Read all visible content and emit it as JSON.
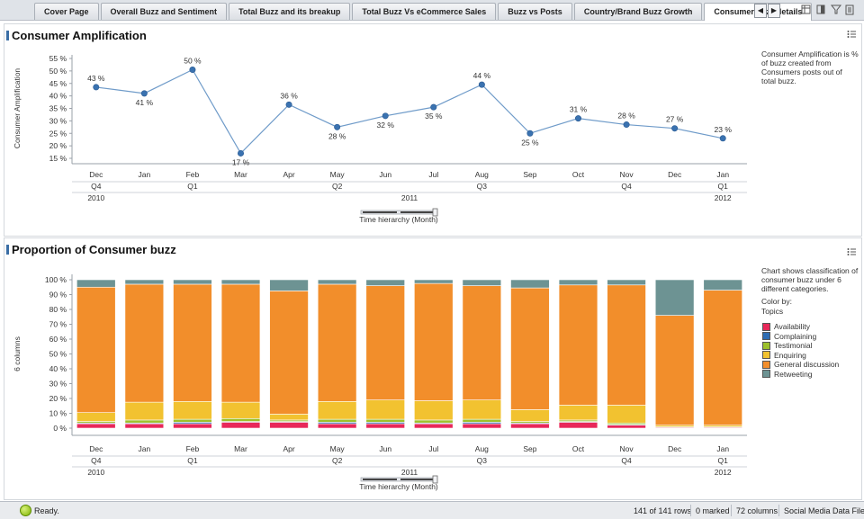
{
  "tabs": [
    "Cover Page",
    "Overall Buzz and Sentiment",
    "Total Buzz and its breakup",
    "Total Buzz Vs eCommerce Sales",
    "Buzz vs Posts",
    "Country/Brand Buzz Growth",
    "Consumer buzz details"
  ],
  "active_tab": 6,
  "tab_nav": {
    "prev": "◀",
    "next": "▶"
  },
  "panel1": {
    "title": "Consumer Amplification",
    "description": "Consumer Amplification is % of buzz created from Consumers posts out of total buzz.",
    "slider_label": "Time hierarchy (Month)"
  },
  "panel2": {
    "title": "Proportion of Consumer buzz",
    "description": "Chart shows classification of consumer buzz under 6 different categories.",
    "color_by_label": "Color by:",
    "color_by_value": "Topics",
    "slider_label": "Time hierarchy (Month)"
  },
  "status": {
    "ready": "Ready.",
    "rows": "141 of 141 rows",
    "marked": "0 marked",
    "columns": "72 columns",
    "file": "Social Media Data File"
  },
  "chart_data": [
    {
      "type": "line",
      "ylabel": "Consumer Amplification",
      "ylim": [
        15,
        55
      ],
      "yticks": [
        "15 %",
        "20 %",
        "25 %",
        "30 %",
        "35 %",
        "40 %",
        "45 %",
        "50 %",
        "55 %"
      ],
      "ytick_values": [
        15,
        20,
        25,
        30,
        35,
        40,
        45,
        50,
        55
      ],
      "months": [
        "Dec",
        "Jan",
        "Feb",
        "Mar",
        "Apr",
        "May",
        "Jun",
        "Jul",
        "Aug",
        "Sep",
        "Oct",
        "Nov",
        "Dec",
        "Jan"
      ],
      "quarters": [
        {
          "label": "Q4",
          "from": 0,
          "to": 0
        },
        {
          "label": "Q1",
          "from": 1,
          "to": 3
        },
        {
          "label": "Q2",
          "from": 4,
          "to": 6
        },
        {
          "label": "Q3",
          "from": 7,
          "to": 9
        },
        {
          "label": "Q4",
          "from": 10,
          "to": 12
        },
        {
          "label": "Q1",
          "from": 13,
          "to": 13
        }
      ],
      "years": [
        {
          "label": "2010",
          "from": 0,
          "to": 0
        },
        {
          "label": "2011",
          "from": 1,
          "to": 12
        },
        {
          "label": "2012",
          "from": 13,
          "to": 13
        }
      ],
      "values": [
        43.5,
        41,
        50.5,
        17,
        36.5,
        27.5,
        32,
        35.5,
        44.5,
        25,
        31,
        28.5,
        27,
        23
      ],
      "data_labels": [
        "43 %",
        "41 %",
        "50 %",
        "17 %",
        "36 %",
        "28 %",
        "32 %",
        "35 %",
        "44 %",
        "25 %",
        "31 %",
        "28 %",
        "27 %",
        "23 %"
      ],
      "label_above": [
        true,
        false,
        true,
        false,
        true,
        false,
        false,
        false,
        true,
        false,
        true,
        true,
        true,
        true
      ],
      "color": "#3a72b0",
      "grid": false,
      "legend": "none"
    },
    {
      "type": "bar",
      "stacked": true,
      "ylabel": "6 columns",
      "ylim": [
        0,
        100
      ],
      "yticks": [
        "0 %",
        "10 %",
        "20 %",
        "30 %",
        "40 %",
        "50 %",
        "60 %",
        "70 %",
        "80 %",
        "90 %",
        "100 %"
      ],
      "ytick_values": [
        0,
        10,
        20,
        30,
        40,
        50,
        60,
        70,
        80,
        90,
        100
      ],
      "months": [
        "Dec",
        "Jan",
        "Feb",
        "Mar",
        "Apr",
        "May",
        "Jun",
        "Jul",
        "Aug",
        "Sep",
        "Oct",
        "Nov",
        "Dec",
        "Jan"
      ],
      "quarters": [
        {
          "label": "Q4",
          "from": 0,
          "to": 0
        },
        {
          "label": "Q1",
          "from": 1,
          "to": 3
        },
        {
          "label": "Q2",
          "from": 4,
          "to": 6
        },
        {
          "label": "Q3",
          "from": 7,
          "to": 9
        },
        {
          "label": "Q4",
          "from": 10,
          "to": 12
        },
        {
          "label": "Q1",
          "from": 13,
          "to": 13
        }
      ],
      "years": [
        {
          "label": "2010",
          "from": 0,
          "to": 0
        },
        {
          "label": "2011",
          "from": 1,
          "to": 12
        },
        {
          "label": "2012",
          "from": 13,
          "to": 13
        }
      ],
      "series": [
        {
          "name": "Availability",
          "color": "#e8285a",
          "values": [
            3,
            3,
            3,
            4,
            4,
            3,
            3,
            3,
            3,
            3,
            4,
            2,
            0.5,
            0.5
          ]
        },
        {
          "name": "Complaining",
          "color": "#2f6db3",
          "values": [
            0.5,
            0.5,
            1,
            0.5,
            0.5,
            1,
            1,
            0.5,
            1,
            0.5,
            0.5,
            0.5,
            0,
            0
          ]
        },
        {
          "name": "Testimonial",
          "color": "#9dc12b",
          "values": [
            1,
            2,
            2,
            2,
            1,
            2,
            2,
            2,
            2,
            1,
            1,
            1,
            0.5,
            0.5
          ]
        },
        {
          "name": "Enquiring",
          "color": "#f2c230",
          "values": [
            6,
            12,
            12,
            11,
            4,
            12,
            13,
            13,
            13,
            8,
            10,
            12,
            1,
            1
          ]
        },
        {
          "name": "General discussion",
          "color": "#f28e2b",
          "values": [
            84.5,
            79.5,
            79,
            79.5,
            83,
            79,
            77,
            79,
            77,
            82,
            81,
            81,
            74,
            91
          ]
        },
        {
          "name": "Retweeting",
          "color": "#6d9393",
          "values": [
            5,
            3,
            3,
            3,
            7.5,
            3,
            4,
            2.5,
            4,
            5.5,
            3.5,
            3.5,
            24,
            7
          ]
        }
      ],
      "grid": false,
      "legend": "right"
    }
  ]
}
